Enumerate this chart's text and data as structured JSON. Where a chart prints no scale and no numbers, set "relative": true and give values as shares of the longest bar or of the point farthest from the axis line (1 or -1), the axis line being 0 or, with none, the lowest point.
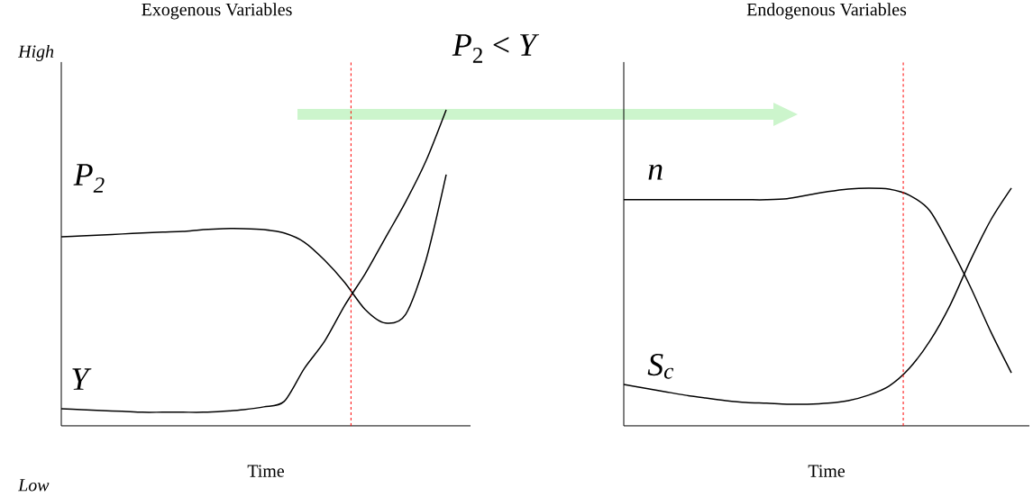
{
  "chart_data": [
    {
      "type": "line",
      "title": "Exogenous Variables",
      "xlabel": "Time",
      "relative": true,
      "categories": [
        null,
        null,
        null,
        null,
        null,
        null,
        null,
        null,
        null,
        null,
        null,
        null,
        null,
        null,
        null,
        null,
        null,
        null,
        null,
        null
      ],
      "series": [
        {
          "name": "*P*$_{2}$",
          "color": "#000000",
          "values": [
            0.598,
            0.601,
            0.604,
            0.607,
            0.61,
            0.613,
            0.615,
            0.621,
            0.624,
            0.624,
            0.621,
            0.61,
            0.581,
            0.524,
            0.453,
            0.368,
            0.325,
            0.353,
            0.524,
            0.795
          ]
        },
        {
          "name": "Y",
          "color": "#000000",
          "values": [
            0.054,
            0.051,
            0.048,
            0.046,
            0.043,
            0.043,
            0.043,
            0.043,
            0.046,
            0.051,
            0.06,
            0.077,
            0.182,
            0.268,
            0.382,
            0.481,
            0.595,
            0.709,
            0.838,
            1.0
          ]
        }
      ],
      "annotations": [
        "*P*$_{2}$ < *Y*",
        "High",
        "Low"
      ]
    },
    {
      "type": "line",
      "title": "Endogenous Variables",
      "xlabel": "Time",
      "relative": true,
      "categories": [
        null,
        null,
        null,
        null,
        null,
        null,
        null,
        null,
        null,
        null,
        null,
        null,
        null,
        null,
        null,
        null,
        null,
        null,
        null,
        null
      ],
      "series": [
        {
          "name": "n",
          "color": "#000000",
          "values": [
            0.951,
            0.951,
            0.951,
            0.951,
            0.951,
            0.951,
            0.951,
            0.951,
            0.955,
            0.97,
            0.985,
            0.996,
            1.0,
            0.996,
            0.97,
            0.905,
            0.754,
            0.583,
            0.394,
            0.223
          ]
        },
        {
          "name": "S$_{c}$",
          "color": "#000000",
          "values": [
            0.174,
            0.159,
            0.144,
            0.129,
            0.117,
            0.106,
            0.098,
            0.095,
            0.091,
            0.091,
            0.095,
            0.106,
            0.129,
            0.167,
            0.242,
            0.356,
            0.508,
            0.697,
            0.867,
            1.0
          ]
        }
      ]
    }
  ]
}
